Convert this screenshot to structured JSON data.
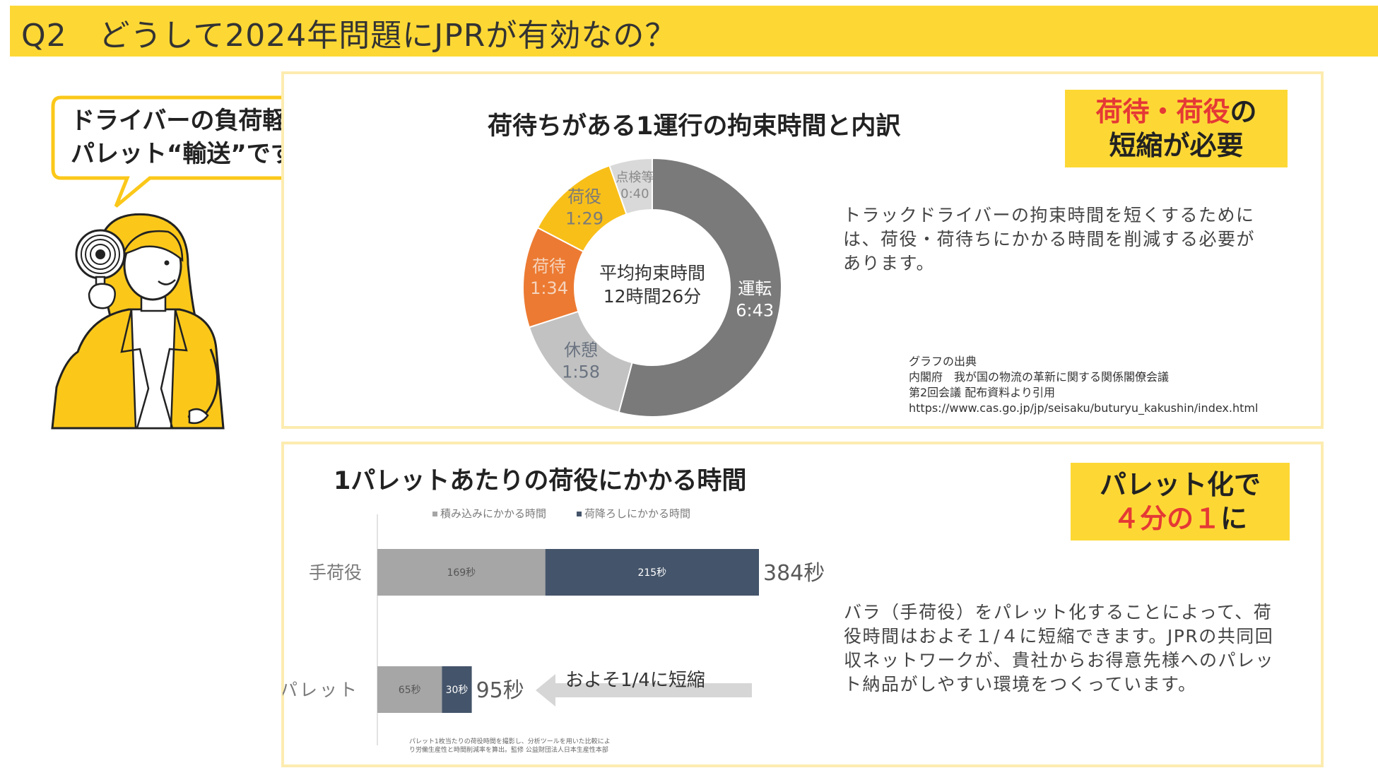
{
  "header": {
    "title": "Q2　どうして2024年問題にJPRが有効なの？"
  },
  "speech": {
    "line1": "ドライバーの負荷軽減の鍵は、",
    "line2": "パレット“輸送”です！"
  },
  "top_panel": {
    "callout": {
      "part1": "荷待・荷役",
      "part2": "の",
      "line2": "短縮が必要"
    },
    "description": "トラックドライバーの拘束時間を短くするためには、荷役・荷待ちにかかる時間を削減する必要があります。",
    "source_lines": [
      "グラフの出典",
      "内閣府　我が国の物流の革新に関する関係閣僚会議",
      "第2回会議 配布資料より引用",
      "https://www.cas.go.jp/jp/seisaku/buturyu_kakushin/index.html"
    ]
  },
  "bottom_panel": {
    "callout": {
      "line1": "パレット化で",
      "part1": "４分の１",
      "part2": "に"
    },
    "description": "バラ（手荷役）をパレット化することによって、荷役時間はおよそ１/４に短縮できます。JPRの共同回収ネットワークが、貴社からお得意先様へのパレット納品がしやすい環境をつくっています。",
    "footnote_lines": [
      "パレット1枚当たりの荷役時間を撮影し、分析ツールを用いた比較によ",
      "り労働生産性と時間削減率を算出。監修 公益財団法人日本生産性本部"
    ]
  },
  "chart_data": [
    {
      "type": "pie",
      "title": "荷待ちがある1運行の拘束時間と内訳",
      "center_label_line1": "平均拘束時間",
      "center_label_line2": "12時間26分",
      "slices": [
        {
          "name": "運転",
          "label": "6:43",
          "minutes": 403,
          "color": "#7a7a7a",
          "text_color": "#ffffff"
        },
        {
          "name": "休憩",
          "label": "1:58",
          "minutes": 118,
          "color": "#c2c2c2",
          "text_color": "#6a7380"
        },
        {
          "name": "荷待",
          "label": "1:34",
          "minutes": 94,
          "color": "#ec7a32",
          "text_color": "#f5d4bd"
        },
        {
          "name": "荷役",
          "label": "1:29",
          "minutes": 89,
          "color": "#f8bf19",
          "text_color": "#7a7a7a"
        },
        {
          "name": "点検等",
          "label": "0:40",
          "minutes": 40,
          "color": "#d9d9d9",
          "text_color": "#8a8a8a"
        }
      ]
    },
    {
      "type": "bar",
      "orientation": "horizontal",
      "stacked": true,
      "title": "1パレットあたりの荷役にかかる時間",
      "categories": [
        "手荷役",
        "パレット"
      ],
      "series": [
        {
          "name": "積み込みにかかる時間",
          "values": [
            169,
            65
          ],
          "color": "#a6a6a6",
          "value_labels": [
            "169秒",
            "65秒"
          ]
        },
        {
          "name": "荷降ろしにかかる時間",
          "values": [
            215,
            30
          ],
          "color": "#44546a",
          "value_labels": [
            "215秒",
            "30秒"
          ]
        }
      ],
      "totals": [
        "384秒",
        "95秒"
      ],
      "annotation": "およそ1/4に短縮",
      "xlim": [
        0,
        384
      ]
    }
  ]
}
